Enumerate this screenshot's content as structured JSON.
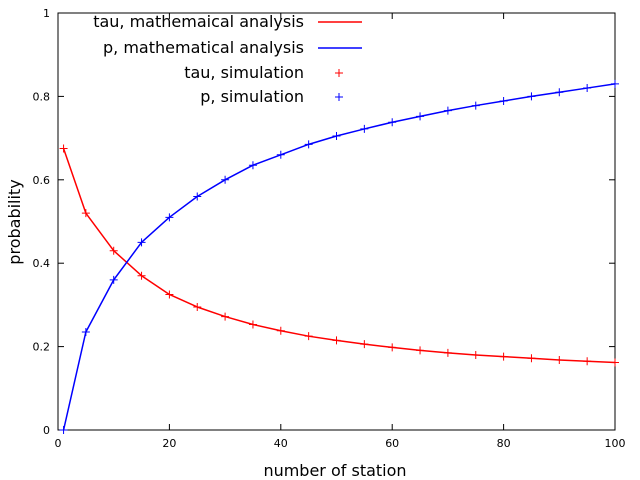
{
  "chart_data": {
    "type": "line",
    "xlabel": "number of station",
    "ylabel": "probability",
    "xlim": [
      0,
      100
    ],
    "ylim": [
      0,
      1
    ],
    "xticks": [
      "0",
      "20",
      "40",
      "60",
      "80",
      "100"
    ],
    "yticks": [
      "0",
      "0.2",
      "0.4",
      "0.6",
      "0.8",
      "1"
    ],
    "grid": false,
    "legend_position": "top-right",
    "x": [
      1,
      5,
      10,
      15,
      20,
      25,
      30,
      35,
      40,
      45,
      50,
      55,
      60,
      65,
      70,
      75,
      80,
      85,
      90,
      95,
      100
    ],
    "series": [
      {
        "name": "tau, mathemaical analysis",
        "style": "line",
        "color": "#ff0000",
        "values": [
          0.675,
          0.52,
          0.43,
          0.37,
          0.325,
          0.295,
          0.272,
          0.253,
          0.238,
          0.225,
          0.215,
          0.206,
          0.198,
          0.191,
          0.185,
          0.18,
          0.176,
          0.172,
          0.168,
          0.165,
          0.162
        ]
      },
      {
        "name": "p, mathematical analysis",
        "style": "line",
        "color": "#0000ff",
        "values": [
          0.0,
          0.235,
          0.36,
          0.45,
          0.51,
          0.56,
          0.6,
          0.635,
          0.66,
          0.685,
          0.705,
          0.722,
          0.738,
          0.752,
          0.766,
          0.778,
          0.789,
          0.8,
          0.81,
          0.82,
          0.83
        ]
      },
      {
        "name": "tau, simulation",
        "style": "points",
        "marker": "+",
        "color": "#ff0000",
        "values": [
          0.675,
          0.52,
          0.43,
          0.37,
          0.325,
          0.295,
          0.272,
          0.253,
          0.238,
          0.225,
          0.215,
          0.206,
          0.198,
          0.191,
          0.185,
          0.18,
          0.176,
          0.172,
          0.168,
          0.165,
          0.162
        ]
      },
      {
        "name": "p, simulation",
        "style": "points",
        "marker": "+",
        "color": "#0000ff",
        "values": [
          0.0,
          0.235,
          0.36,
          0.45,
          0.51,
          0.56,
          0.6,
          0.635,
          0.66,
          0.685,
          0.705,
          0.722,
          0.738,
          0.752,
          0.766,
          0.778,
          0.789,
          0.8,
          0.81,
          0.82,
          0.83
        ]
      }
    ]
  }
}
